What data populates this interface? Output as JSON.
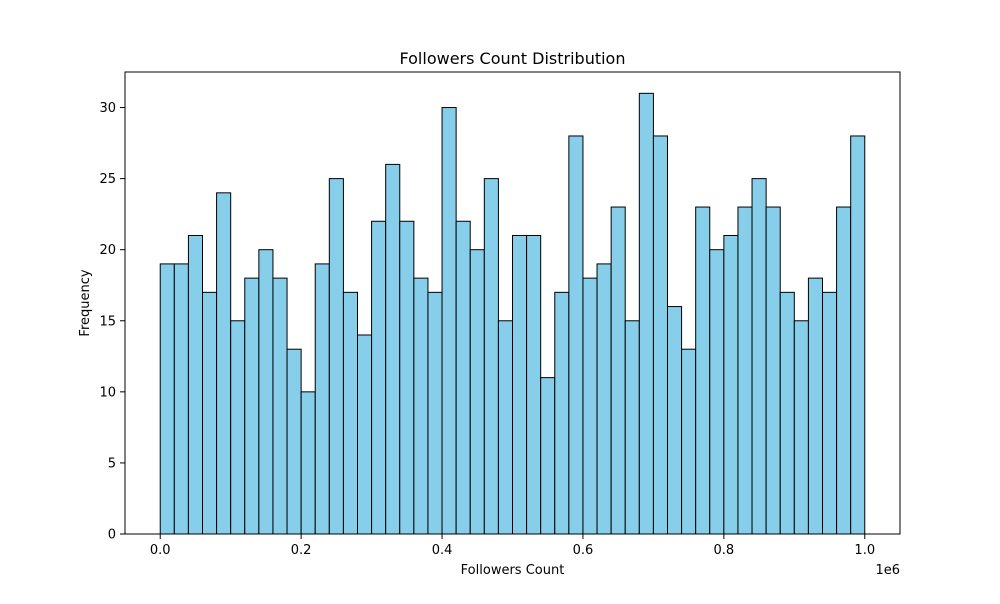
{
  "chart_data": {
    "type": "bar",
    "title": "Followers Count Distribution",
    "xlabel": "Followers Count",
    "ylabel": "Frequency",
    "x_offset_label": "1e6",
    "x_tick_labels": [
      "0.0",
      "0.2",
      "0.4",
      "0.6",
      "0.8",
      "1.0"
    ],
    "x_tick_values": [
      0.0,
      0.2,
      0.4,
      0.6,
      0.8,
      1.0
    ],
    "y_tick_labels": [
      "0",
      "5",
      "10",
      "15",
      "20",
      "25",
      "30"
    ],
    "y_tick_values": [
      0,
      5,
      10,
      15,
      20,
      25,
      30
    ],
    "xlim": [
      -0.05,
      1.05
    ],
    "ylim": [
      0,
      32.5
    ],
    "bins": {
      "start": 0.0,
      "end": 1.0,
      "count": 50
    },
    "values": [
      19,
      19,
      21,
      17,
      24,
      15,
      18,
      20,
      18,
      13,
      10,
      19,
      25,
      17,
      14,
      22,
      26,
      22,
      18,
      17,
      30,
      22,
      20,
      25,
      15,
      21,
      21,
      11,
      17,
      28,
      18,
      19,
      23,
      15,
      31,
      28,
      16,
      13,
      23,
      20,
      21,
      23,
      25,
      23,
      17,
      15,
      18,
      17,
      23,
      28
    ],
    "bar_color": "#87CEEB",
    "edge_color": "#000000",
    "grid": false,
    "legend": "none"
  }
}
